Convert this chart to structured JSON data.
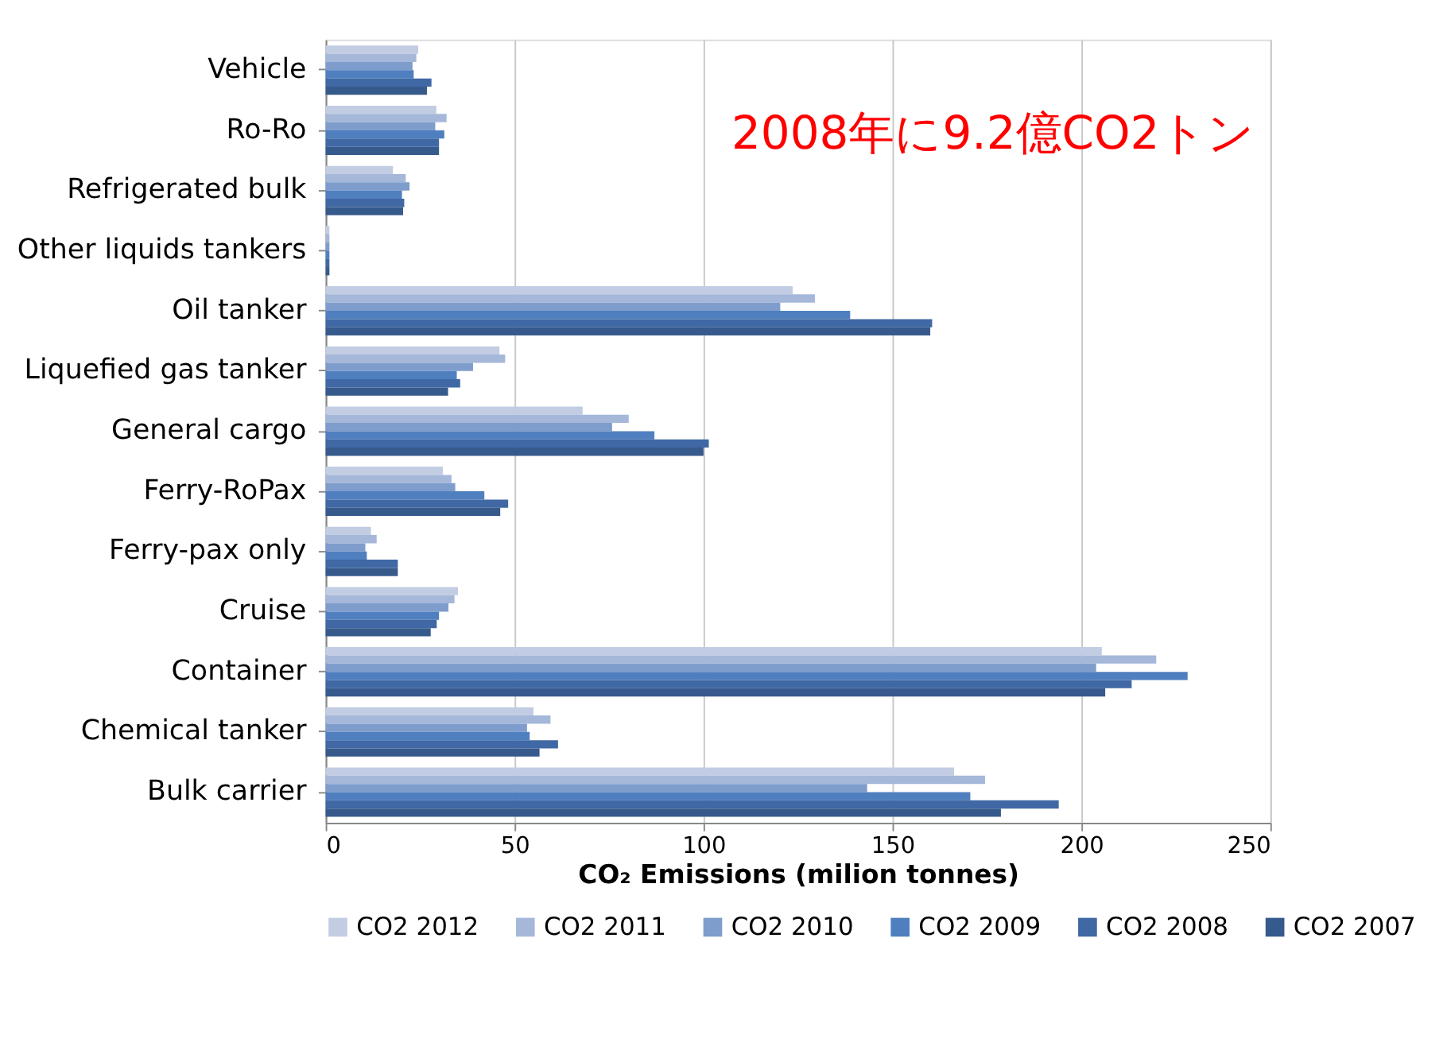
{
  "chart_data": {
    "type": "bar",
    "orientation": "horizontal",
    "categories": [
      "Vehicle",
      "Ro-Ro",
      "Refrigerated bulk",
      "Other liquids tankers",
      "Oil tanker",
      "Liquefied gas tanker",
      "General cargo",
      "Ferry-RoPax",
      "Ferry-pax only",
      "Cruise",
      "Container",
      "Chemical tanker",
      "Bulk carrier"
    ],
    "series": [
      {
        "name": "CO2 2012",
        "color": "#c2cde3",
        "values": [
          24.5,
          29.3,
          17.8,
          1,
          123.6,
          46,
          68,
          31,
          12,
          35,
          205.4,
          55,
          166.3
        ]
      },
      {
        "name": "CO2 2011",
        "color": "#a5b8d9",
        "values": [
          24,
          32,
          21.2,
          1,
          129.5,
          47.5,
          80.2,
          33.3,
          13.5,
          34.1,
          219.8,
          59.5,
          174.5
        ]
      },
      {
        "name": "CO2 2010",
        "color": "#7f9dcc",
        "values": [
          23,
          29,
          22.2,
          1,
          120.3,
          39,
          75.8,
          34.3,
          10.5,
          32.5,
          203.9,
          53.3,
          143.3
        ]
      },
      {
        "name": "CO2 2009",
        "color": "#4f7fbf",
        "values": [
          23.3,
          31.4,
          20.2,
          1,
          138.8,
          34.7,
          87,
          42,
          10.9,
          30,
          228.1,
          54,
          170.6
        ]
      },
      {
        "name": "CO2 2008",
        "color": "#4068a4",
        "values": [
          28,
          30,
          20.8,
          1,
          160.5,
          35.6,
          101.4,
          48.3,
          19.1,
          29.4,
          213.3,
          61.5,
          194
        ]
      },
      {
        "name": "CO2 2007",
        "color": "#375a8c",
        "values": [
          26.8,
          30,
          20.5,
          1,
          160,
          32.4,
          100,
          46.2,
          19.1,
          27.8,
          206.3,
          56.6,
          178.7
        ]
      }
    ],
    "xlim": [
      0,
      250
    ],
    "xticks": [
      0,
      50,
      100,
      150,
      200,
      250
    ],
    "xlabel": "CO₂ Emissions (milion tonnes)",
    "annotations": [
      "2008年に9.2億CO2トン"
    ],
    "grid": "x",
    "legend": "bottom"
  }
}
